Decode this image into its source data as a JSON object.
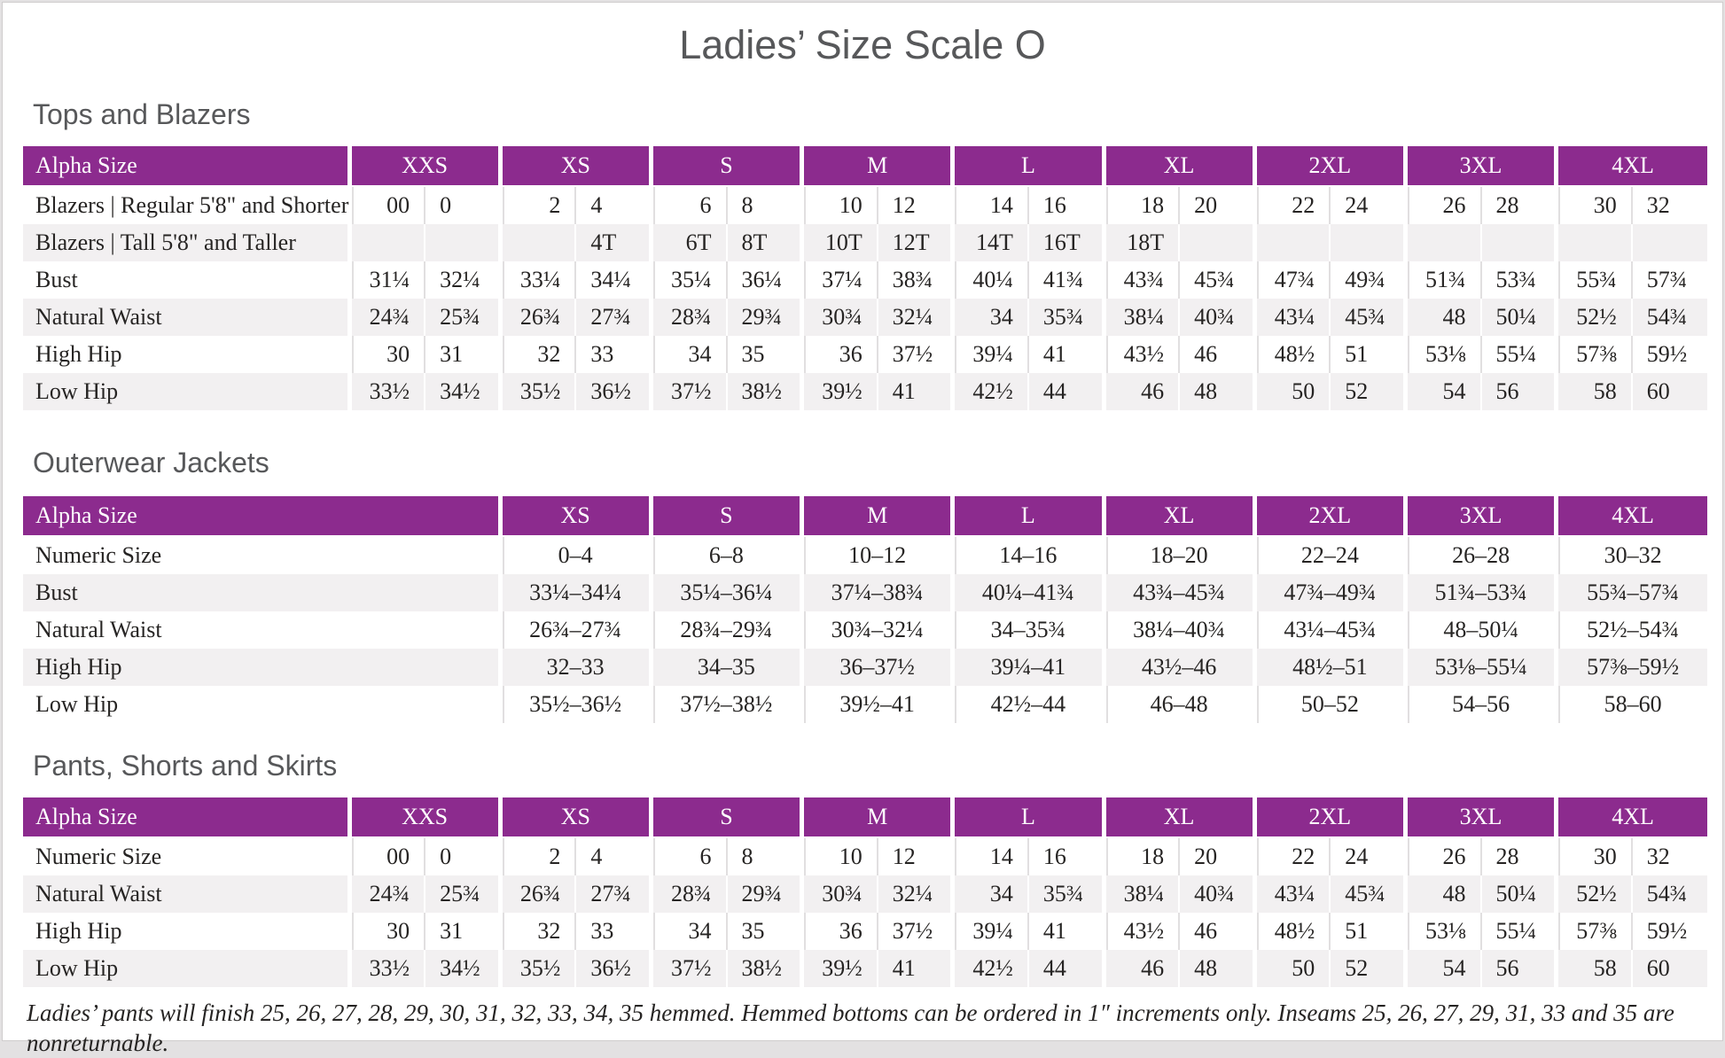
{
  "title": "Ladies’ Size Scale O",
  "colors": {
    "header_purple": "#8c2b8e",
    "row_alt_gray": "#f2f0f1",
    "heading_gray": "#57585a",
    "text": "#262423"
  },
  "sections": [
    {
      "heading": "Tops and Blazers",
      "type": "paired",
      "header": {
        "label": "Alpha Size",
        "groups": [
          "XXS",
          "XS",
          "S",
          "M",
          "L",
          "XL",
          "2XL",
          "3XL",
          "4XL"
        ]
      },
      "rows": [
        {
          "label": "Blazers | Regular 5'8\" and Shorter",
          "values": [
            "00",
            "0",
            "2",
            "4",
            "6",
            "8",
            "10",
            "12",
            "14",
            "16",
            "18",
            "20",
            "22",
            "24",
            "26",
            "28",
            "30",
            "32"
          ]
        },
        {
          "label": "Blazers | Tall 5'8\" and Taller",
          "values": [
            "",
            "",
            "",
            "4T",
            "6T",
            "8T",
            "10T",
            "12T",
            "14T",
            "16T",
            "18T",
            "",
            "",
            "",
            "",
            "",
            "",
            ""
          ]
        },
        {
          "label": "Bust",
          "values": [
            "31¼",
            "32¼",
            "33¼",
            "34¼",
            "35¼",
            "36¼",
            "37¼",
            "38¾",
            "40¼",
            "41¾",
            "43¾",
            "45¾",
            "47¾",
            "49¾",
            "51¾",
            "53¾",
            "55¾",
            "57¾"
          ]
        },
        {
          "label": "Natural Waist",
          "values": [
            "24¾",
            "25¾",
            "26¾",
            "27¾",
            "28¾",
            "29¾",
            "30¾",
            "32¼",
            "34",
            "35¾",
            "38¼",
            "40¾",
            "43¼",
            "45¾",
            "48",
            "50¼",
            "52½",
            "54¾"
          ]
        },
        {
          "label": "High Hip",
          "values": [
            "30",
            "31",
            "32",
            "33",
            "34",
            "35",
            "36",
            "37½",
            "39¼",
            "41",
            "43½",
            "46",
            "48½",
            "51",
            "53⅛",
            "55¼",
            "57⅜",
            "59½"
          ]
        },
        {
          "label": "Low Hip",
          "values": [
            "33½",
            "34½",
            "35½",
            "36½",
            "37½",
            "38½",
            "39½",
            "41",
            "42½",
            "44",
            "46",
            "48",
            "50",
            "52",
            "54",
            "56",
            "58",
            "60"
          ]
        }
      ]
    },
    {
      "heading": "Outerwear Jackets",
      "type": "single",
      "header": {
        "label": "Alpha Size",
        "groups": [
          "XS",
          "S",
          "M",
          "L",
          "XL",
          "2XL",
          "3XL",
          "4XL"
        ]
      },
      "rows": [
        {
          "label": "Numeric Size",
          "values": [
            "0–4",
            "6–8",
            "10–12",
            "14–16",
            "18–20",
            "22–24",
            "26–28",
            "30–32"
          ]
        },
        {
          "label": "Bust",
          "values": [
            "33¼–34¼",
            "35¼–36¼",
            "37¼–38¾",
            "40¼–41¾",
            "43¾–45¾",
            "47¾–49¾",
            "51¾–53¾",
            "55¾–57¾"
          ]
        },
        {
          "label": "Natural Waist",
          "values": [
            "26¾–27¾",
            "28¾–29¾",
            "30¾–32¼",
            "34–35¾",
            "38¼–40¾",
            "43¼–45¾",
            "48–50¼",
            "52½–54¾"
          ]
        },
        {
          "label": "High Hip",
          "values": [
            "32–33",
            "34–35",
            "36–37½",
            "39¼–41",
            "43½–46",
            "48½–51",
            "53⅛–55¼",
            "57⅜–59½"
          ]
        },
        {
          "label": "Low Hip",
          "values": [
            "35½–36½",
            "37½–38½",
            "39½–41",
            "42½–44",
            "46–48",
            "50–52",
            "54–56",
            "58–60"
          ]
        }
      ]
    },
    {
      "heading": "Pants, Shorts and Skirts",
      "type": "paired",
      "header": {
        "label": "Alpha Size",
        "groups": [
          "XXS",
          "XS",
          "S",
          "M",
          "L",
          "XL",
          "2XL",
          "3XL",
          "4XL"
        ]
      },
      "rows": [
        {
          "label": "Numeric Size",
          "values": [
            "00",
            "0",
            "2",
            "4",
            "6",
            "8",
            "10",
            "12",
            "14",
            "16",
            "18",
            "20",
            "22",
            "24",
            "26",
            "28",
            "30",
            "32"
          ]
        },
        {
          "label": "Natural Waist",
          "values": [
            "24¾",
            "25¾",
            "26¾",
            "27¾",
            "28¾",
            "29¾",
            "30¾",
            "32¼",
            "34",
            "35¾",
            "38¼",
            "40¾",
            "43¼",
            "45¾",
            "48",
            "50¼",
            "52½",
            "54¾"
          ]
        },
        {
          "label": "High Hip",
          "values": [
            "30",
            "31",
            "32",
            "33",
            "34",
            "35",
            "36",
            "37½",
            "39¼",
            "41",
            "43½",
            "46",
            "48½",
            "51",
            "53⅛",
            "55¼",
            "57⅜",
            "59½"
          ]
        },
        {
          "label": "Low Hip",
          "values": [
            "33½",
            "34½",
            "35½",
            "36½",
            "37½",
            "38½",
            "39½",
            "41",
            "42½",
            "44",
            "46",
            "48",
            "50",
            "52",
            "54",
            "56",
            "58",
            "60"
          ]
        }
      ]
    }
  ],
  "footnote": "Ladies’ pants will finish 25, 26, 27, 28, 29, 30, 31, 32, 33, 34, 35 hemmed. Hemmed bottoms can be ordered in 1″ increments only. Inseams 25, 26, 27, 29, 31, 33 and 35 are nonreturnable."
}
